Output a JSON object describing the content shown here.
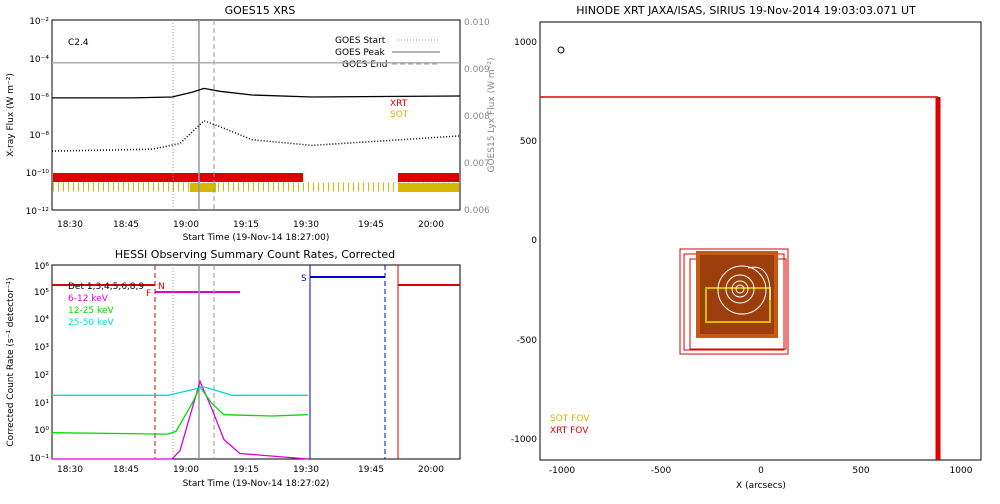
{
  "chart_data": [
    {
      "type": "line",
      "title": "GOES15 XRS",
      "xlabel": "Start Time (19-Nov-14 18:27:00)",
      "ylabel": "X-ray Flux (W m⁻²)",
      "y2label": "GOES15 Lyx Flux (W m⁻²)",
      "annotation": "C2.4",
      "xlim": [
        "18:25",
        "20:07"
      ],
      "ylim_log10": [
        -12,
        -2
      ],
      "y2lim": [
        0.006,
        0.01
      ],
      "x_ticks": [
        "18:30",
        "18:45",
        "19:00",
        "19:15",
        "19:30",
        "19:45",
        "20:00"
      ],
      "y_ticks": [
        "10⁻¹²",
        "10⁻¹⁰",
        "10⁻⁸",
        "10⁻⁶",
        "10⁻⁴",
        "10⁻²"
      ],
      "y2_ticks": [
        "0.006",
        "0.007",
        "0.008",
        "0.009",
        "0.010"
      ],
      "legend": [
        "GOES Start",
        "GOES Peak",
        "GOES End"
      ],
      "legend_position": "top-right",
      "bar_labels": [
        {
          "text": "XRT",
          "color": "#dd0000"
        },
        {
          "text": "SOT",
          "color": "#d6b800"
        }
      ],
      "event_lines": {
        "start": "18:59",
        "peak": "19:03",
        "end": "19:07"
      },
      "series": [
        {
          "color": "#000000",
          "points": [
            [
              "18:25",
              -6.1
            ],
            [
              "18:45",
              -6.1
            ],
            [
              "18:55",
              -6.05
            ],
            [
              "19:00",
              -5.8
            ],
            [
              "19:03",
              -5.6
            ],
            [
              "19:07",
              -5.75
            ],
            [
              "19:15",
              -5.95
            ],
            [
              "19:30",
              -6.05
            ],
            [
              "20:07",
              -6.0
            ]
          ]
        },
        {
          "color": "#000000",
          "style": "dotted",
          "points": [
            [
              "18:25",
              -8.9
            ],
            [
              "18:50",
              -8.8
            ],
            [
              "18:57",
              -8.5
            ],
            [
              "19:03",
              -7.3
            ],
            [
              "19:08",
              -7.7
            ],
            [
              "19:15",
              -8.3
            ],
            [
              "19:30",
              -8.6
            ],
            [
              "20:07",
              -8.1
            ]
          ]
        },
        {
          "color": "#aaaaaa",
          "points": [
            [
              "18:25",
              0.0091
            ],
            [
              "20:07",
              0.0091
            ]
          ]
        }
      ]
    },
    {
      "type": "line",
      "title": "HESSI Observing Summary Count Rates, Corrected",
      "xlabel": "Start Time (19-Nov-14 18:27:02)",
      "ylabel": "Corrected Count Rate (s⁻¹ detector⁻¹)",
      "xlim": [
        "18:25",
        "20:07"
      ],
      "ylim_log10": [
        -1,
        6
      ],
      "x_ticks": [
        "18:30",
        "18:45",
        "19:00",
        "19:15",
        "19:30",
        "19:45",
        "20:00"
      ],
      "y_ticks": [
        "10⁻¹",
        "10⁰",
        "10¹",
        "10²",
        "10³",
        "10⁴",
        "10⁵",
        "10⁶"
      ],
      "legend": [
        {
          "text": "Det 1,3,4,5,6,8,9",
          "color": "#000000"
        },
        {
          "text": "6-12 keV",
          "color": "#dd00dd"
        },
        {
          "text": "12-25 keV",
          "color": "#00dd00"
        },
        {
          "text": "25-50 keV",
          "color": "#00dddd"
        }
      ],
      "legend_position": "top-left",
      "flags": [
        {
          "text": "F",
          "color": "#dd0000"
        },
        {
          "text": "N",
          "color": "#dd0000"
        },
        {
          "text": "S",
          "color": "#0000cc"
        }
      ],
      "series": [
        {
          "name": "6-12 keV",
          "color": "#dd00dd",
          "points": [
            [
              "18:25",
              -1
            ],
            [
              "18:55",
              -1
            ],
            [
              "18:57",
              -0.7
            ],
            [
              "19:00",
              0.8
            ],
            [
              "19:02",
              1.8
            ],
            [
              "19:05",
              0.8
            ],
            [
              "19:08",
              -0.3
            ],
            [
              "19:12",
              -0.8
            ],
            [
              "19:29",
              -1
            ]
          ]
        },
        {
          "name": "12-25 keV",
          "color": "#00dd00",
          "points": [
            [
              "18:25",
              -0.05
            ],
            [
              "18:54",
              -0.1
            ],
            [
              "18:56",
              0.0
            ],
            [
              "19:00",
              1.0
            ],
            [
              "19:02",
              1.6
            ],
            [
              "19:05",
              1.0
            ],
            [
              "19:08",
              0.6
            ],
            [
              "19:20",
              0.55
            ],
            [
              "19:29",
              0.6
            ]
          ]
        },
        {
          "name": "25-50 keV",
          "color": "#00dddd",
          "points": [
            [
              "18:25",
              1.3
            ],
            [
              "18:54",
              1.3
            ],
            [
              "19:00",
              1.5
            ],
            [
              "19:03",
              1.6
            ],
            [
              "19:10",
              1.3
            ],
            [
              "19:29",
              1.3
            ]
          ]
        }
      ]
    },
    {
      "type": "scatter",
      "title": "HINODE XRT JAXA/ISAS, SIRIUS 19-Nov-2014 19:03:03.071 UT",
      "xlabel": "X (arcsecs)",
      "ylabel": "",
      "xlim": [
        -1100,
        1100
      ],
      "ylim": [
        -1100,
        1100
      ],
      "x_ticks": [
        "-1000",
        "-500",
        "0",
        "500",
        "1000"
      ],
      "y_ticks": [
        "-1000",
        "-500",
        "0",
        "500",
        "1000"
      ],
      "legend": [
        {
          "text": "SOT FOV",
          "color": "#d6b800"
        },
        {
          "text": "XRT FOV",
          "color": "#dd0000"
        }
      ],
      "legend_position": "bottom-left"
    }
  ]
}
